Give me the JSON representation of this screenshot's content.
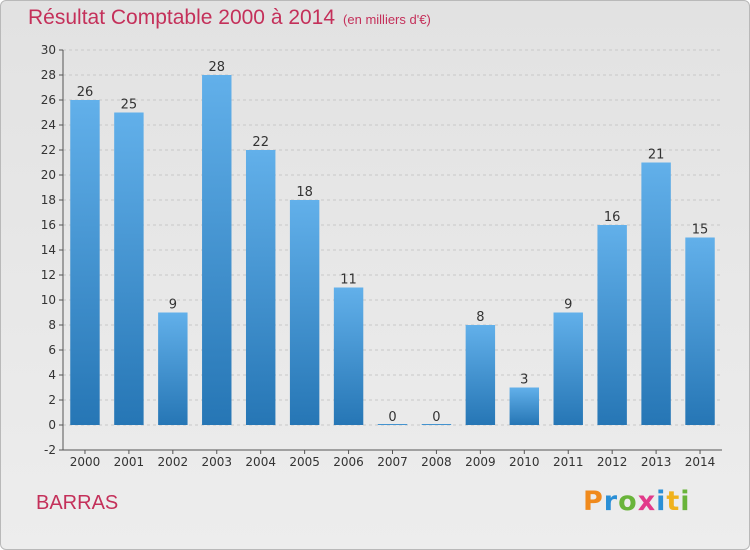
{
  "header": {
    "title": "Résultat Comptable 2000 à 2014",
    "subtitle": "(en milliers d'€)"
  },
  "footer": {
    "place_name": "BARRAS",
    "logo_letters": [
      "P",
      "r",
      "o",
      "x",
      "i",
      "t",
      "i"
    ]
  },
  "colors": {
    "title": "#c4305a",
    "bar_top": "#62b0ea",
    "bar_bottom": "#2676b5",
    "logo": [
      "#f08a1c",
      "#2a8fd6",
      "#69b43a",
      "#e23a8a",
      "#2a8fd6",
      "#f0b21c",
      "#69b43a"
    ]
  },
  "chart_data": {
    "type": "bar",
    "categories": [
      "2000",
      "2001",
      "2002",
      "2003",
      "2004",
      "2005",
      "2006",
      "2007",
      "2008",
      "2009",
      "2010",
      "2011",
      "2012",
      "2013",
      "2014"
    ],
    "values": [
      26,
      25,
      9,
      28,
      22,
      18,
      11,
      0,
      0,
      8,
      3,
      9,
      16,
      21,
      15
    ],
    "ylim": [
      -2,
      30
    ],
    "yticks": [
      -2,
      0,
      2,
      4,
      6,
      8,
      10,
      12,
      14,
      16,
      18,
      20,
      22,
      24,
      26,
      28,
      30
    ],
    "grid": true,
    "xlabel": "",
    "ylabel": ""
  }
}
